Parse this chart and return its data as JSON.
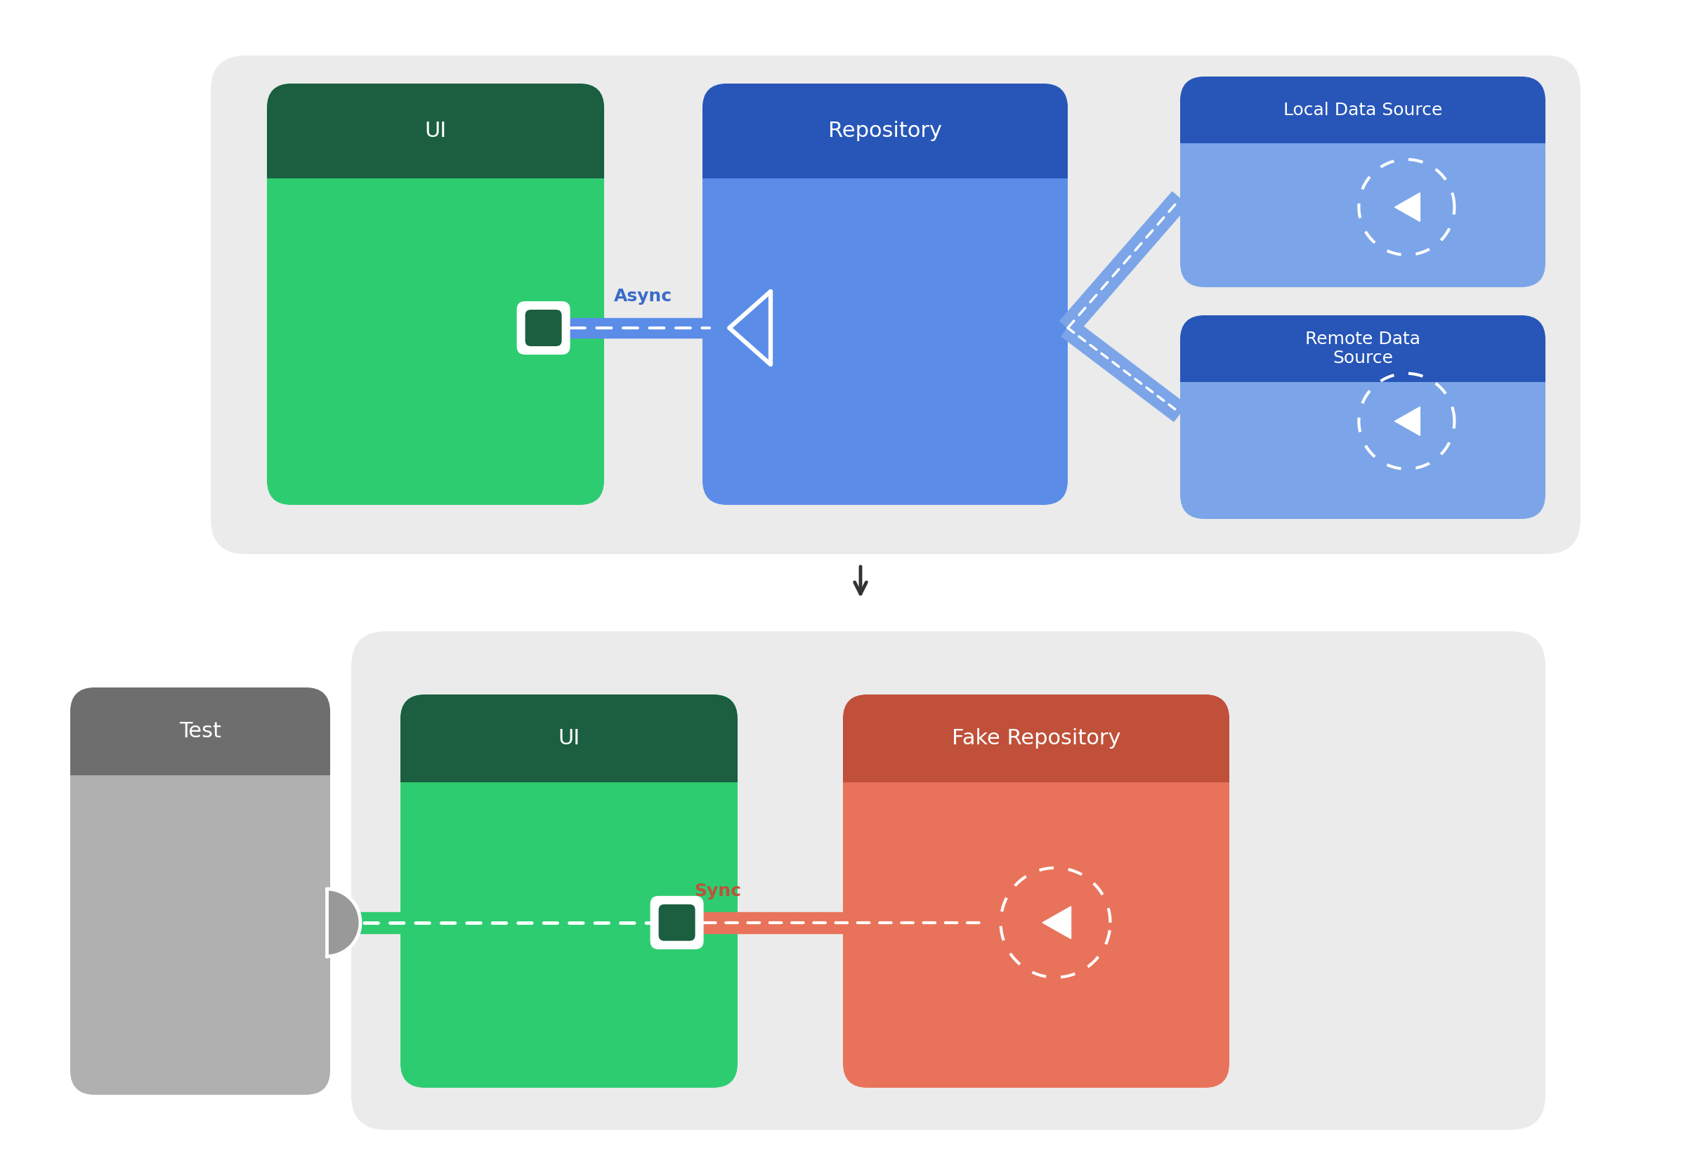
{
  "white_bg": "#ffffff",
  "panel_bg": "#ebebeb",
  "ui_header_color": "#1b5e40",
  "ui_body_color": "#2ecc71",
  "ui_square_dark": "#1b5e40",
  "repo_header_color": "#2856b8",
  "repo_body_color": "#5b8de8",
  "local_source_header": "#2856b8",
  "local_source_body": "#7ba5e8",
  "remote_source_header": "#2856b8",
  "remote_source_body": "#7ba5e8",
  "test_header_color": "#6e6e6e",
  "test_body_color": "#b0b0b0",
  "test_icon_color": "#cccccc",
  "fake_repo_header": "#c0503a",
  "fake_repo_body": "#e8735a",
  "async_label_color": "#3a6bc9",
  "sync_label_color": "#c0503a",
  "arrow_color_blue": "#7ba5e8",
  "arrow_color_green": "#2ecc71",
  "arrow_color_salmon": "#e8735a",
  "title_ui": "UI",
  "title_repo": "Repository",
  "title_local": "Local Data Source",
  "title_remote": "Remote Data\nSource",
  "title_test": "Test",
  "title_ui2": "UI",
  "title_fake": "Fake Repository",
  "label_async": "Async",
  "label_sync": "Sync",
  "font_size_header": 22,
  "font_size_label": 18,
  "font_size_small": 18
}
